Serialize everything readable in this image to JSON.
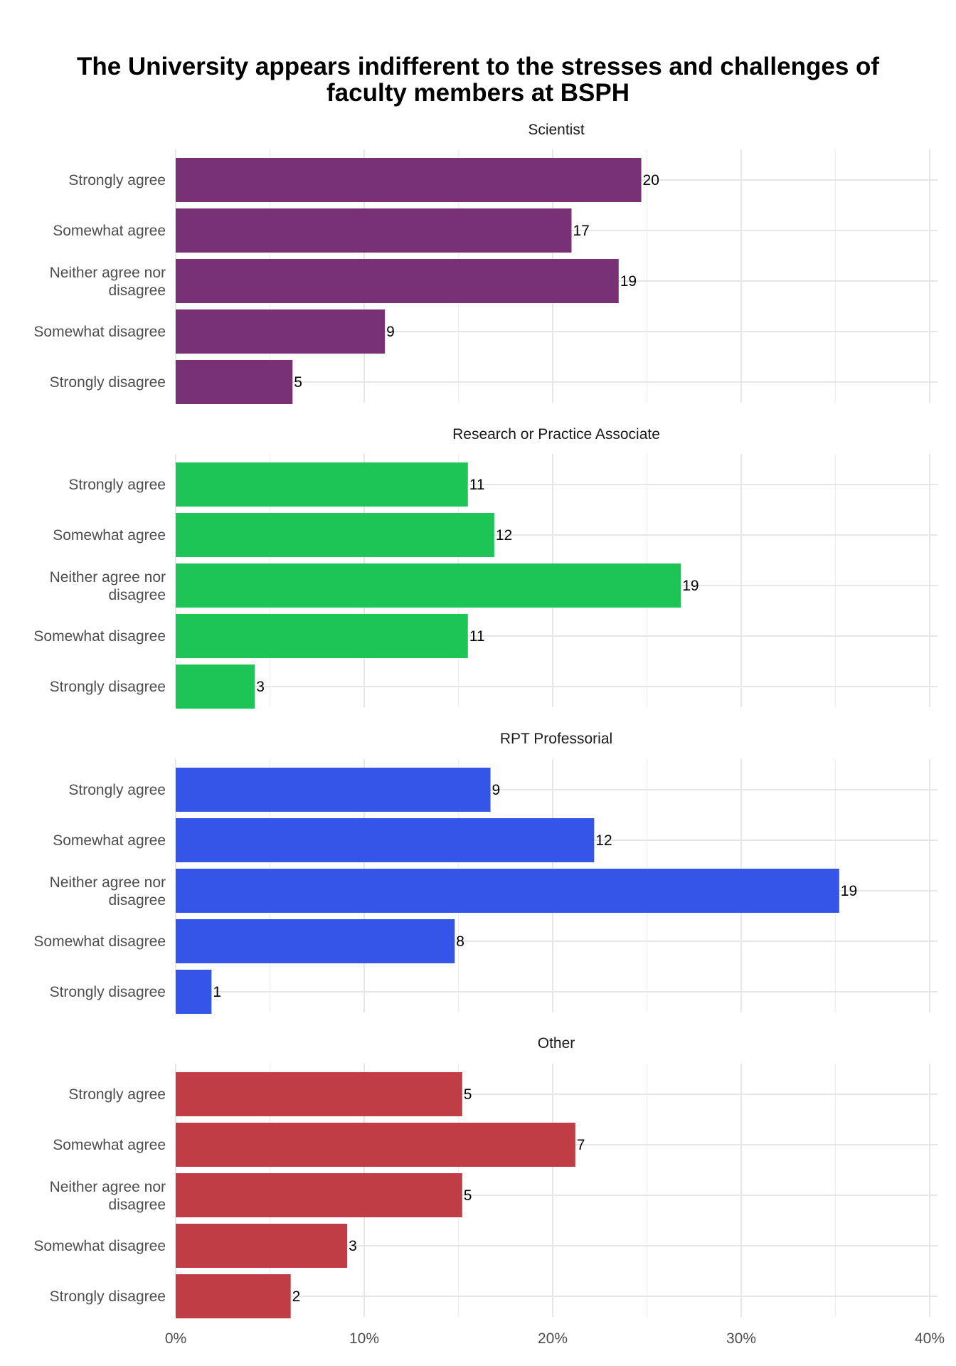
{
  "chart_data": {
    "type": "bar",
    "orientation": "horizontal",
    "title_lines": [
      "The University appears indifferent to the stresses and challenges of",
      "faculty members at BSPH"
    ],
    "categories": [
      "Strongly agree",
      "Somewhat agree",
      "Neither agree nor disagree",
      "Somewhat disagree",
      "Strongly disagree"
    ],
    "category_label_lines": [
      [
        "Strongly agree"
      ],
      [
        "Somewhat agree"
      ],
      [
        "Neither agree nor",
        "disagree"
      ],
      [
        "Somewhat disagree"
      ],
      [
        "Strongly disagree"
      ]
    ],
    "x_ticks": [
      {
        "value": 0,
        "label": "0%"
      },
      {
        "value": 10,
        "label": "10%"
      },
      {
        "value": 20,
        "label": "20%"
      },
      {
        "value": 30,
        "label": "30%"
      },
      {
        "value": 40,
        "label": "40%"
      }
    ],
    "xlim": [
      0,
      40
    ],
    "grid": true,
    "legend": "none",
    "facets": [
      {
        "name": "Scientist",
        "color": "#773174",
        "percent": [
          24.7,
          21.0,
          23.5,
          11.1,
          6.2
        ],
        "counts": [
          "20",
          "17",
          "19",
          "9",
          "5"
        ]
      },
      {
        "name": "Research or Practice Associate",
        "color": "#1DC556",
        "percent": [
          15.5,
          16.9,
          26.8,
          15.5,
          4.2
        ],
        "counts": [
          "11",
          "12",
          "19",
          "11",
          "3"
        ]
      },
      {
        "name": "RPT Professorial",
        "color": "#3555E8",
        "percent": [
          16.7,
          22.2,
          35.2,
          14.8,
          1.9
        ],
        "counts": [
          "9",
          "12",
          "19",
          "8",
          "1"
        ]
      },
      {
        "name": "Other",
        "color": "#C03D45",
        "percent": [
          15.2,
          21.2,
          15.2,
          9.1,
          6.1
        ],
        "counts": [
          "5",
          "7",
          "5",
          "3",
          "2"
        ]
      }
    ]
  }
}
